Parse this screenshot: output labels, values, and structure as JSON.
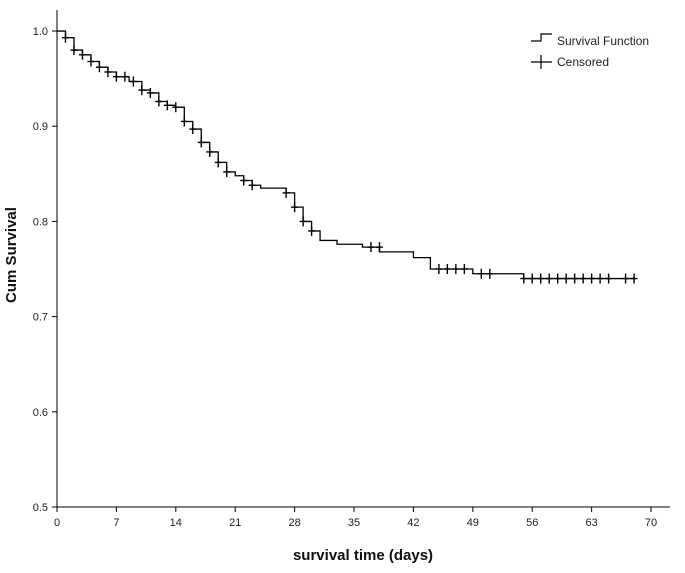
{
  "chart_data": {
    "type": "line",
    "title": "",
    "xlabel": "survival time (days)",
    "ylabel": "Cum Survival",
    "xlim": [
      0,
      72
    ],
    "ylim": [
      0.5,
      1.02
    ],
    "x_ticks": [
      0,
      7,
      14,
      21,
      28,
      35,
      42,
      49,
      56,
      63,
      70
    ],
    "y_ticks": [
      0.5,
      0.6,
      0.7,
      0.8,
      0.9,
      1.0
    ],
    "y_tick_labels": [
      "0.5",
      "0.6",
      "0.7",
      "0.8",
      "0.9",
      "1.0"
    ],
    "grid": false,
    "legend": {
      "position": "top-right",
      "entries": [
        "Survival Function",
        "Censored"
      ]
    },
    "series": [
      {
        "name": "Survival Function",
        "step": true,
        "color": "#000000",
        "x": [
          0,
          1,
          2,
          3,
          4,
          5,
          6,
          7,
          8.5,
          10,
          11,
          12,
          13,
          14,
          15,
          16,
          17,
          18,
          19,
          20,
          21,
          22,
          23,
          24,
          27,
          28,
          29,
          30,
          31,
          33,
          36,
          38,
          42,
          44,
          46,
          49,
          55,
          68
        ],
        "y": [
          1.0,
          0.993,
          0.98,
          0.975,
          0.968,
          0.962,
          0.957,
          0.952,
          0.947,
          0.938,
          0.935,
          0.926,
          0.922,
          0.92,
          0.905,
          0.897,
          0.883,
          0.873,
          0.862,
          0.852,
          0.848,
          0.843,
          0.838,
          0.835,
          0.83,
          0.815,
          0.8,
          0.79,
          0.78,
          0.776,
          0.773,
          0.768,
          0.762,
          0.75,
          0.75,
          0.745,
          0.74,
          0.74
        ]
      },
      {
        "name": "Censored",
        "marker": "plus",
        "color": "#000000",
        "x": [
          1,
          2,
          3,
          4,
          5,
          6,
          7,
          8,
          9,
          10,
          11,
          12,
          13,
          14,
          15,
          16,
          17,
          18,
          19,
          20,
          22,
          23,
          27,
          28,
          29,
          30,
          37,
          38,
          45,
          46,
          47,
          48,
          50,
          51,
          55,
          56,
          57,
          58,
          59,
          60,
          61,
          62,
          63,
          64,
          65,
          67,
          68
        ],
        "y": [
          0.993,
          0.98,
          0.975,
          0.968,
          0.962,
          0.957,
          0.952,
          0.952,
          0.947,
          0.938,
          0.935,
          0.926,
          0.922,
          0.92,
          0.905,
          0.897,
          0.883,
          0.873,
          0.862,
          0.852,
          0.843,
          0.838,
          0.83,
          0.815,
          0.8,
          0.79,
          0.773,
          0.773,
          0.75,
          0.75,
          0.75,
          0.75,
          0.745,
          0.745,
          0.74,
          0.74,
          0.74,
          0.74,
          0.74,
          0.74,
          0.74,
          0.74,
          0.74,
          0.74,
          0.74,
          0.74,
          0.74
        ]
      }
    ]
  }
}
